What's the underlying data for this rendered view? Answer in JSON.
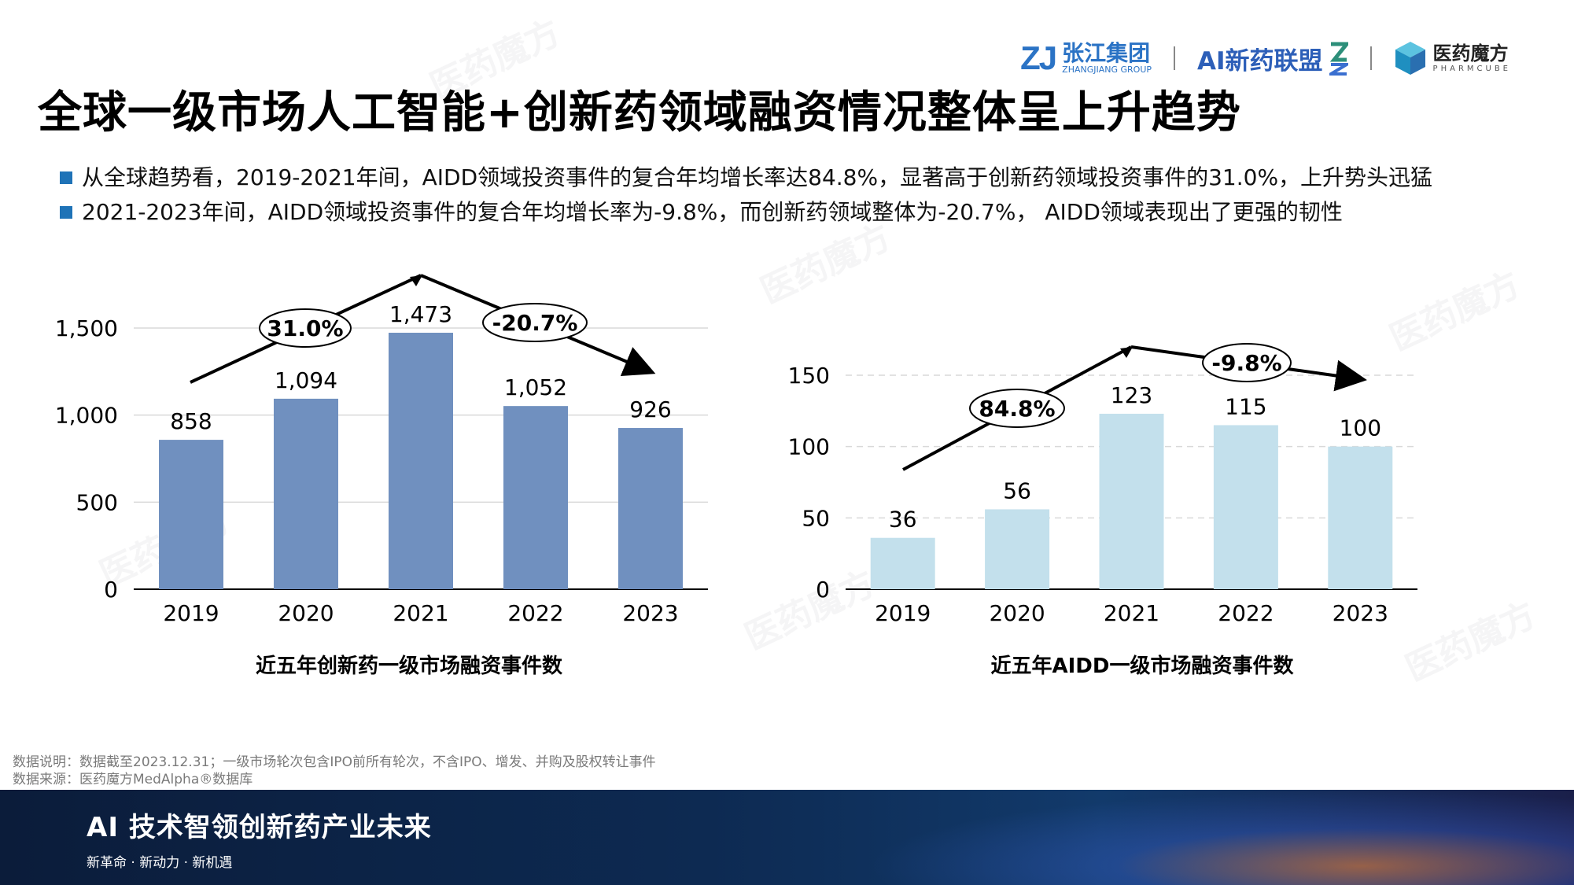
{
  "header": {
    "logos": [
      {
        "mark": "ZJ",
        "cn": "张江集团",
        "en": "ZHANGJIANG GROUP"
      },
      {
        "cn": "AI新药联盟"
      },
      {
        "cn": "医药魔方",
        "en": "PHARMCUBE"
      }
    ],
    "title": "全球一级市场人工智能+创新药领域融资情况整体呈上升趋势"
  },
  "bullets": [
    "从全球趋势看，2019-2021年间，AIDD领域投资事件的复合年均增长率达84.8%，显著高于创新药领域投资事件的31.0%，上升势头迅猛",
    "2021-2023年间，AIDD领域投资事件的复合年均增长率为-9.8%，而创新药领域整体为-20.7%， AIDD领域表现出了更强的韧性"
  ],
  "chart_data": [
    {
      "type": "bar",
      "title": "近五年创新药一级市场融资事件数",
      "categories": [
        "2019",
        "2020",
        "2021",
        "2022",
        "2023"
      ],
      "values": [
        858,
        1094,
        1473,
        1052,
        926
      ],
      "value_labels": [
        "858",
        "1,094",
        "1,473",
        "1,052",
        "926"
      ],
      "yticks": [
        "0",
        "500",
        "1,000",
        "1,500"
      ],
      "ylim": [
        0,
        1500
      ],
      "color": "#7090bf",
      "grid": true,
      "annotations": [
        "31.0%",
        "-20.7%"
      ]
    },
    {
      "type": "bar",
      "title": "近五年AIDD一级市场融资事件数",
      "categories": [
        "2019",
        "2020",
        "2021",
        "2022",
        "2023"
      ],
      "values": [
        36,
        56,
        123,
        115,
        100
      ],
      "value_labels": [
        "36",
        "56",
        "123",
        "115",
        "100"
      ],
      "yticks": [
        "0",
        "50",
        "100",
        "150"
      ],
      "ylim": [
        0,
        150
      ],
      "color": "#c3e0ec",
      "grid": true,
      "annotations": [
        "84.8%",
        "-9.8%"
      ]
    }
  ],
  "notes": {
    "line1": "数据说明：数据截至2023.12.31；一级市场轮次包含IPO前所有轮次，不含IPO、增发、并购及股权转让事件",
    "line2": "数据来源：医药魔方MedAlpha®数据库"
  },
  "footer": {
    "slogan": "AI 技术智领创新药产业未来",
    "sub": "新革命 · 新动力 · 新机遇"
  },
  "watermark": "医药魔方"
}
